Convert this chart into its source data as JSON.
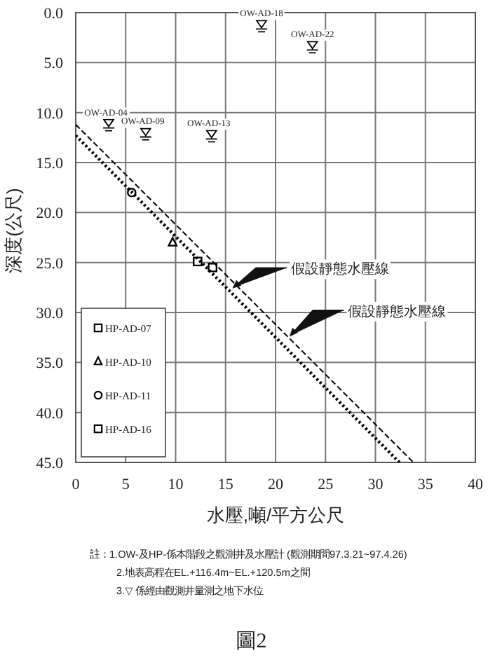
{
  "chart_data": {
    "type": "scatter",
    "xlabel": "水壓,噸/平方公尺",
    "ylabel": "深度(公尺)",
    "xlim": [
      0,
      40
    ],
    "xticks": [
      0,
      5,
      10,
      15,
      20,
      25,
      30,
      35,
      40
    ],
    "ylim": [
      45,
      0
    ],
    "yticks": [
      {
        "value": 0,
        "label": "0.0"
      },
      {
        "value": 5,
        "label": "5.0"
      },
      {
        "value": 10,
        "label": "10.0"
      },
      {
        "value": 15,
        "label": "15.0"
      },
      {
        "value": 20,
        "label": "20.0"
      },
      {
        "value": 25,
        "label": "25.0"
      },
      {
        "value": 30,
        "label": "30.0"
      },
      {
        "value": 35,
        "label": "35.0"
      },
      {
        "value": 40,
        "label": "40.0"
      },
      {
        "value": 45,
        "label": "45.0"
      }
    ],
    "grid": true,
    "legend": "bottom left",
    "series": [
      {
        "name": "HP-AD-07",
        "marker": "square",
        "color": "#000000",
        "x": [
          13.7
        ],
        "values": [
          25.5
        ]
      },
      {
        "name": "HP-AD-10",
        "marker": "triangle",
        "color": "#000000",
        "x": [
          9.7
        ],
        "values": [
          23.0
        ]
      },
      {
        "name": "HP-AD-11",
        "marker": "circle",
        "color": "#000000",
        "x": [
          5.6
        ],
        "values": [
          18.0
        ]
      },
      {
        "name": "HP-AD-16",
        "marker": "square",
        "color": "#000000",
        "x": [
          12.2
        ],
        "values": [
          24.9
        ]
      },
      {
        "color": "#000000",
        "x": [
          3.3,
          7.0,
          13.6,
          18.6,
          23.7
        ],
        "values": [
          11.4,
          12.3,
          12.5,
          1.5,
          3.6
        ]
      },
      {
        "type": "line",
        "line_style": "dotted",
        "color": "#000000",
        "x": [
          0,
          32.4
        ],
        "values": [
          12.3,
          45
        ]
      },
      {
        "type": "line",
        "line_style": "dashed",
        "color": "#000000",
        "x": [
          0,
          33.8
        ],
        "values": [
          11.2,
          45
        ]
      }
    ],
    "annotations": [
      {
        "text": "OW-AD-04",
        "x": 3.3,
        "y": 11.4
      },
      {
        "text": "OW-AD-09",
        "x": 7.0,
        "y": 12.3
      },
      {
        "text": "OW-AD-13",
        "x": 13.6,
        "y": 12.5
      },
      {
        "text": "OW-AD-18",
        "x": 18.6,
        "y": 1.5
      },
      {
        "text": "OW-AD-22",
        "x": 23.7,
        "y": 3.6
      },
      {
        "text": "假設靜態水壓線",
        "x": 15.8,
        "y": 27.5
      },
      {
        "text": "假設靜態水壓線",
        "x": 21.5,
        "y": 32.3
      },
      "註：1.OW-及HP-係本階段之觀測井及水壓計 (觀測期間97.3.21~97.4.26)",
      "2.地表高程在EL.+116.4m~EL.+120.5m之間",
      "3.▽ 係經由觀測井量測之地下水位",
      "圖2"
    ]
  }
}
